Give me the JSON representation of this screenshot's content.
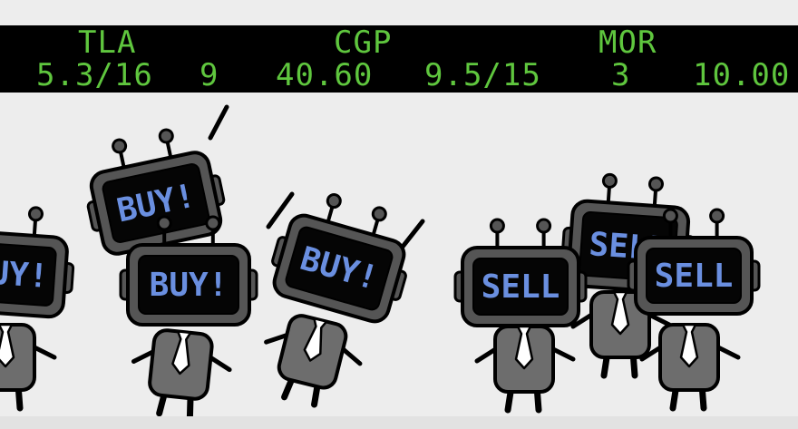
{
  "ticker": {
    "symbols": [
      "TLA",
      "CGP",
      "MOR"
    ],
    "values": [
      "5.3/16",
      "9",
      "40.60",
      "9.5/15",
      "3",
      "10.00"
    ]
  },
  "robots": [
    {
      "sign": "BUY!"
    },
    {
      "sign": "BUY!"
    },
    {
      "sign": "BUY!"
    },
    {
      "sign": "BUY!"
    },
    {
      "sign": "SELL"
    },
    {
      "sign": "SELL"
    },
    {
      "sign": "SELL"
    }
  ],
  "colors": {
    "ticker_text": "#5fc63e",
    "ticker_background": "#000000",
    "sign_text": "#6a8fe0",
    "robot_head": "#555555",
    "robot_screen": "#050505",
    "robot_body": "#6d6d6d",
    "tie": "#ffffff",
    "background": "#ededed"
  }
}
